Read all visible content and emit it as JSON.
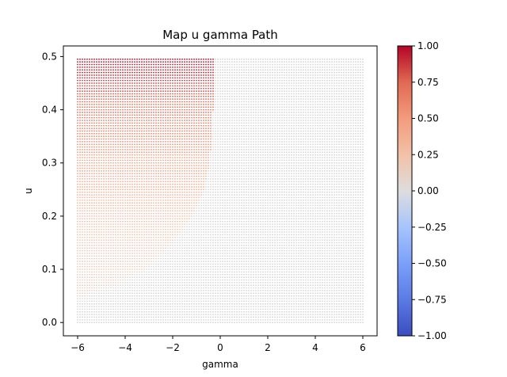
{
  "chart_data": {
    "type": "scatter",
    "title": "Map u gamma Path",
    "xlabel": "gamma",
    "ylabel": "u",
    "xlim": [
      -6.6,
      6.6
    ],
    "ylim": [
      -0.025,
      0.52
    ],
    "x_ticks": [
      -6,
      -4,
      -2,
      0,
      2,
      4,
      6
    ],
    "x_tick_labels": [
      "−6",
      "−4",
      "−2",
      "0",
      "2",
      "4",
      "6"
    ],
    "y_ticks": [
      0.0,
      0.1,
      0.2,
      0.3,
      0.4,
      0.5
    ],
    "y_tick_labels": [
      "0.0",
      "0.1",
      "0.2",
      "0.3",
      "0.4",
      "0.5"
    ],
    "grid": false,
    "colormap": "coolwarm",
    "color_range": [
      -1.0,
      1.0
    ],
    "colorbar_ticks": [
      1.0,
      0.75,
      0.5,
      0.25,
      0.0,
      -0.25,
      -0.5,
      -0.75,
      -1.0
    ],
    "colorbar_tick_labels": [
      "1.00",
      "0.75",
      "0.50",
      "0.25",
      "0.00",
      "−0.25",
      "−0.50",
      "−0.75",
      "−1.00"
    ],
    "grid_points": {
      "gamma_range": [
        -6,
        6
      ],
      "gamma_step": 0.1,
      "u_range": [
        0.0,
        0.495
      ],
      "u_step": 0.005
    },
    "colored_region": {
      "description": "points with gamma <= boundary(u) take value ~ u*2 (up to 1.0 at u=0.5); others are 0",
      "boundary_u_start": 0.05,
      "boundary_gamma_at_u": [
        [
          0.05,
          -6.0
        ],
        [
          0.07,
          -4.5
        ],
        [
          0.1,
          -3.2
        ],
        [
          0.15,
          -2.0
        ],
        [
          0.2,
          -1.2
        ],
        [
          0.25,
          -0.7
        ],
        [
          0.3,
          -0.45
        ],
        [
          0.35,
          -0.35
        ],
        [
          0.4,
          -0.3
        ],
        [
          0.45,
          -0.25
        ],
        [
          0.5,
          -0.25
        ]
      ],
      "value_at_u": [
        [
          0.05,
          0.12
        ],
        [
          0.1,
          0.15
        ],
        [
          0.2,
          0.25
        ],
        [
          0.3,
          0.45
        ],
        [
          0.4,
          0.7
        ],
        [
          0.5,
          1.0
        ]
      ]
    }
  }
}
